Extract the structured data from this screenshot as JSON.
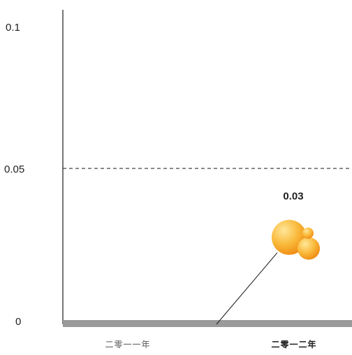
{
  "chart_data": {
    "type": "scatter",
    "categories": [
      "二零一一年",
      "二零一二年"
    ],
    "ylim": [
      0,
      0.1
    ],
    "yticks": [
      "0",
      "0.05",
      "0.1"
    ],
    "reference_line": {
      "value": 0.05,
      "style": "dashed"
    },
    "points": [
      {
        "category": "二零一二年",
        "value": 0.03,
        "label": "0.03"
      }
    ],
    "colors": {
      "bubble": "#f5a623",
      "bubble_highlight": "#ffe79a",
      "axis": "#1a1a1a",
      "baseline_bar": "#9a9a9a"
    },
    "grid": false,
    "legend": "none"
  }
}
